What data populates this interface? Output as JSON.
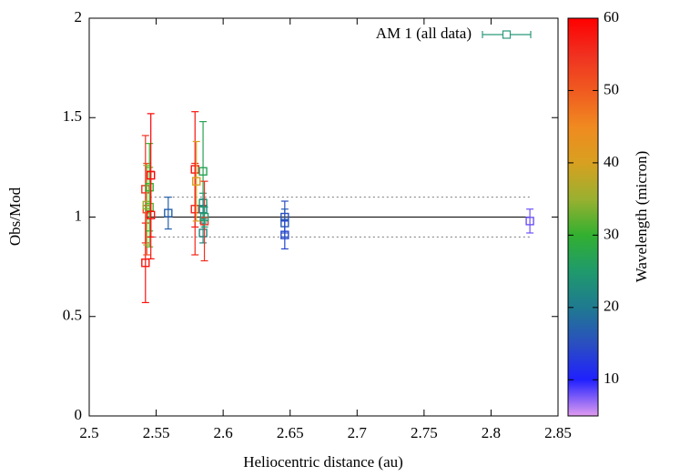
{
  "chart_data": {
    "type": "scatter",
    "x_label": "Heliocentric distance (au)",
    "y_label": "Obs/Mod",
    "xlim": [
      2.5,
      2.85
    ],
    "xticks": [
      2.5,
      2.55,
      2.6,
      2.65,
      2.7,
      2.75,
      2.8,
      2.85
    ],
    "ylim": [
      0,
      2
    ],
    "yticks": [
      0,
      0.5,
      1,
      1.5,
      2
    ],
    "legend": "top-right",
    "reference_lines": [
      {
        "value": 1,
        "style": "solid"
      },
      {
        "value": 0.9,
        "style": "dotted"
      },
      {
        "value": 1.1,
        "style": "dotted"
      }
    ],
    "colorbar": {
      "label": "Wavelength (micron)",
      "lim": [
        5,
        60
      ],
      "ticks": [
        10,
        20,
        30,
        40,
        50,
        60
      ],
      "colors": [
        "#e09cf0",
        "#2020ff",
        "#2a4fc0",
        "#1f7a90",
        "#1f9a6c",
        "#32b030",
        "#9ab030",
        "#d8a020",
        "#f08a20",
        "#f05a20",
        "#f03020",
        "#ff0000"
      ]
    },
    "series": [
      {
        "name": "AM 1 (all data)",
        "color": "#2a9a7a",
        "x": [
          2.542,
          2.542,
          2.543,
          2.543,
          2.545,
          2.545,
          2.546,
          2.546,
          2.559,
          2.579,
          2.579,
          2.58,
          2.585,
          2.585,
          2.585,
          2.585,
          2.586,
          2.586,
          2.646,
          2.646,
          2.646,
          2.829
        ],
        "values": [
          0.77,
          1.14,
          1.04,
          1.06,
          1.15,
          1.05,
          1.21,
          1.01,
          1.02,
          1.24,
          1.04,
          1.18,
          1.23,
          1.07,
          1.04,
          0.92,
          0.98,
          1.0,
          1.0,
          0.97,
          0.91,
          0.98
        ],
        "errors": [
          0.2,
          0.27,
          0.23,
          0.2,
          0.22,
          0.2,
          0.31,
          0.22,
          0.08,
          0.29,
          0.23,
          0.2,
          0.25,
          0.05,
          0.05,
          0.05,
          0.2,
          0.05,
          0.08,
          0.07,
          0.07,
          0.06
        ],
        "wavelength": [
          58,
          55,
          52,
          35,
          30,
          32,
          60,
          58,
          17,
          58,
          56,
          40,
          27,
          25,
          22,
          22,
          55,
          25,
          15,
          16,
          14,
          8
        ]
      }
    ]
  }
}
